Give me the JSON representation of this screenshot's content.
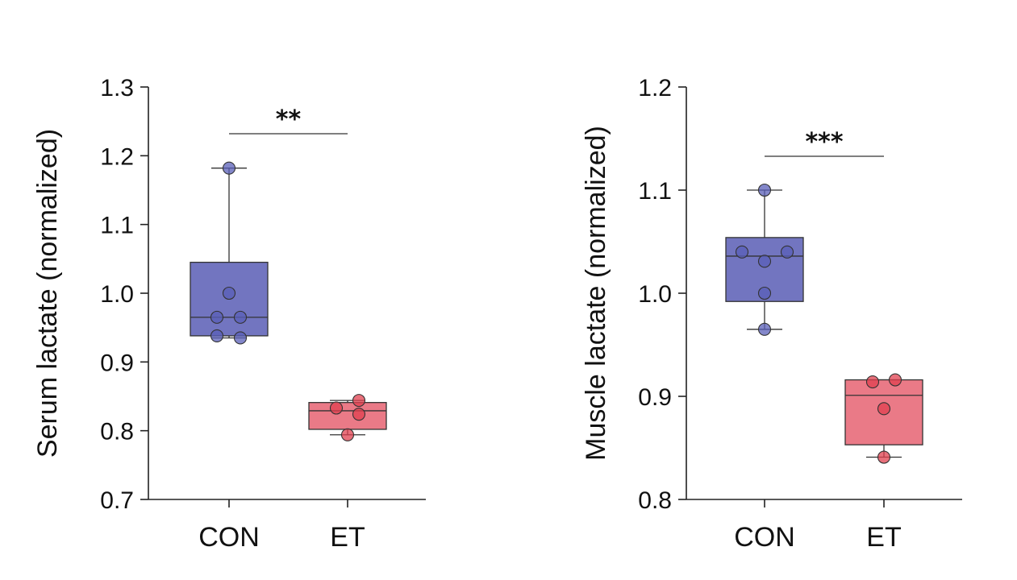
{
  "chart_data": [
    {
      "type": "box",
      "ylabel": "Serum lactate (normalized)",
      "ylim": [
        0.7,
        1.3
      ],
      "yticks": [
        0.7,
        0.8,
        0.9,
        1.0,
        1.1,
        1.2,
        1.3
      ],
      "ytick_labels": [
        "0.7",
        "0.8",
        "0.9",
        "1.0",
        "1.1",
        "1.2",
        "1.3"
      ],
      "categories": [
        "CON",
        "ET"
      ],
      "groups": [
        {
          "name": "CON",
          "color": "#7275c0",
          "point_color": "#5a5fb8",
          "min": 0.935,
          "q1": 0.938,
          "median": 0.965,
          "q3": 1.045,
          "max": 1.182,
          "points": [
            1.182,
            1.0,
            0.965,
            0.965,
            0.938,
            0.935
          ]
        },
        {
          "name": "ET",
          "color": "#ea7a87",
          "point_color": "#e0404f",
          "min": 0.794,
          "q1": 0.802,
          "median": 0.829,
          "q3": 0.841,
          "max": 0.844,
          "points": [
            0.844,
            0.833,
            0.824,
            0.794
          ]
        }
      ],
      "significance": "**"
    },
    {
      "type": "box",
      "ylabel": "Muscle lactate (normalized)",
      "ylim": [
        0.8,
        1.2
      ],
      "yticks": [
        0.8,
        0.9,
        1.0,
        1.1,
        1.2
      ],
      "ytick_labels": [
        "0.8",
        "0.9",
        "1.0",
        "1.1",
        "1.2"
      ],
      "categories": [
        "CON",
        "ET"
      ],
      "groups": [
        {
          "name": "CON",
          "color": "#7275c0",
          "point_color": "#5a5fb8",
          "min": 0.965,
          "q1": 0.992,
          "median": 1.036,
          "q3": 1.054,
          "max": 1.1,
          "points": [
            1.1,
            1.04,
            1.04,
            1.031,
            1.0,
            0.965
          ]
        },
        {
          "name": "ET",
          "color": "#ea7a87",
          "point_color": "#e0404f",
          "min": 0.841,
          "q1": 0.853,
          "median": 0.901,
          "q3": 0.916,
          "max": 0.916,
          "points": [
            0.916,
            0.914,
            0.888,
            0.841
          ]
        }
      ],
      "significance": "***"
    }
  ]
}
